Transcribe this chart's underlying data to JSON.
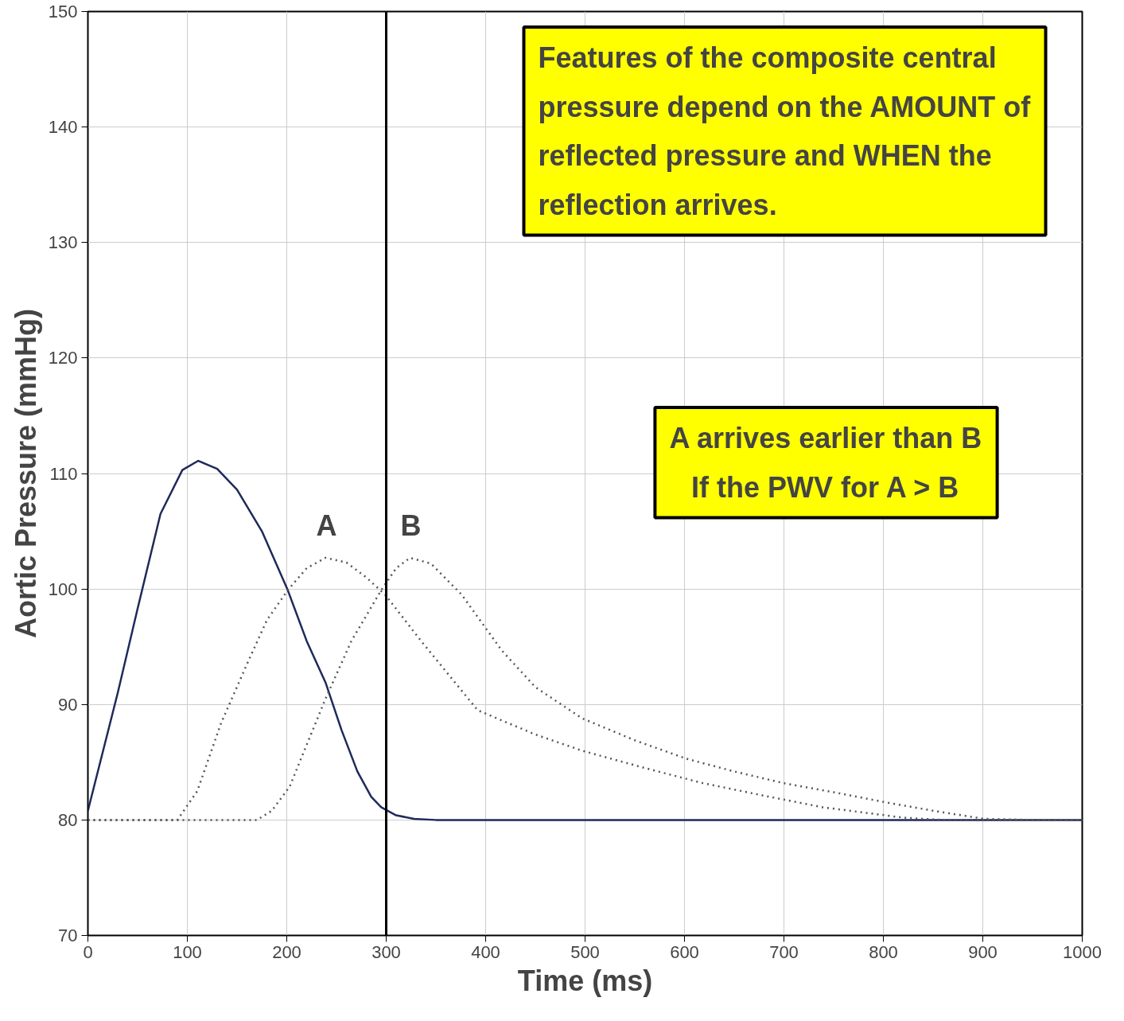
{
  "chart_data": {
    "type": "line",
    "xlabel": "Time (ms)",
    "ylabel": "Aortic Pressure (mmHg)",
    "xlim": [
      0,
      1000
    ],
    "xticks": [
      0,
      100,
      200,
      300,
      400,
      500,
      600,
      700,
      800,
      900,
      1000
    ],
    "ylim": [
      70,
      150
    ],
    "yticks": [
      70,
      80,
      90,
      100,
      110,
      120,
      130,
      140,
      150
    ],
    "grid": true,
    "marker": "none",
    "series": [
      {
        "color": "#1f2a5a",
        "line_style": "solid",
        "x": [
          0,
          30,
          50,
          73,
          95,
          111,
          130,
          150,
          175,
          201,
          220,
          239,
          255,
          271,
          285,
          295,
          310,
          328,
          350,
          1000
        ],
        "values": [
          80.8,
          91,
          98.3,
          106.5,
          110.3,
          111.1,
          110.4,
          108.6,
          105,
          99.9,
          95.5,
          91.9,
          87.8,
          84.2,
          82,
          81.1,
          80.4,
          80.1,
          80,
          80
        ]
      },
      {
        "color": "#555555",
        "line_style": "dotted",
        "x": [
          0,
          90,
          110,
          134,
          160,
          180,
          201,
          220,
          239,
          260,
          280,
          299,
          336,
          392,
          450,
          497,
          560,
          618,
          680,
          739,
          820,
          860,
          1000
        ],
        "values": [
          80,
          80,
          82.5,
          88.4,
          93.5,
          97.3,
          99.9,
          101.8,
          102.7,
          102.3,
          101,
          99.5,
          95.4,
          89.5,
          87.4,
          86,
          84.5,
          83.2,
          82.1,
          81.1,
          80.2,
          80,
          80
        ]
      },
      {
        "color": "#555555",
        "line_style": "dotted",
        "x": [
          0,
          170,
          185,
          203,
          220,
          239,
          265,
          295,
          310,
          324,
          345,
          376,
          416,
          450,
          497,
          550,
          602,
          650,
          699,
          750,
          804,
          850,
          901,
          950,
          1000
        ],
        "values": [
          80,
          80,
          80.8,
          82.9,
          86.5,
          90.5,
          95.5,
          99.9,
          101.8,
          102.7,
          102.2,
          99.5,
          94.7,
          91.5,
          88.8,
          86.9,
          85.3,
          84.2,
          83.2,
          82.4,
          81.5,
          80.8,
          80.1,
          80,
          80
        ]
      }
    ],
    "ref_lines": [
      {
        "axis": "x",
        "value": 300,
        "color": "#000000",
        "line_style": "solid"
      }
    ],
    "annotations": [
      "A",
      "B",
      "Features of the composite central pressure depend on the AMOUNT of reflected pressure and WHEN the reflection arrives.",
      "A arrives earlier than B If the PWV for A > B"
    ]
  }
}
